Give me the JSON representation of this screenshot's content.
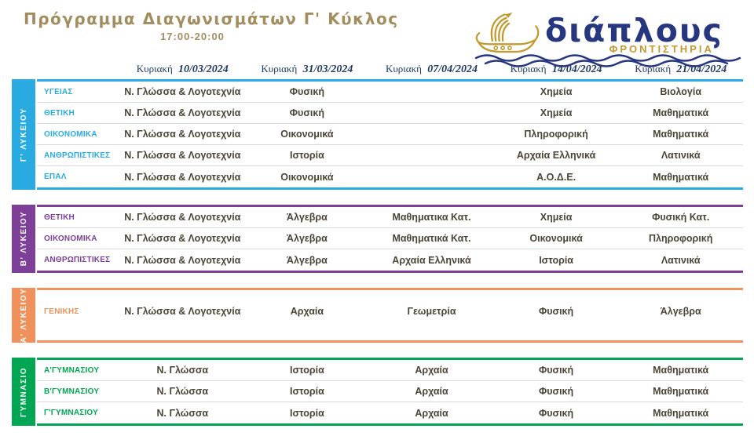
{
  "header": {
    "title": "Πρόγραμμα Διαγωνισμάτων Γ' Κύκλος",
    "time_range": "17:00-20:00"
  },
  "logo": {
    "brand": "διάπλους",
    "brand_sub": "ΦΡΟΝΤΙΣΤΗΡΙΑ",
    "brand_color": "#26367f",
    "gold_color": "#c49a2f"
  },
  "columns": [
    {
      "day": "Κυριακή",
      "date": "10/03/2024"
    },
    {
      "day": "Κυριακή",
      "date": "31/03/2024"
    },
    {
      "day": "Κυριακή",
      "date": "07/04/2024"
    },
    {
      "day": "Κυριακή",
      "date": "14/04/2024"
    },
    {
      "day": "Κυριακή",
      "date": "21/04/2024"
    }
  ],
  "sections": [
    {
      "label": "Γ' ΛΥΚΕΙΟΥ",
      "color": "#29abe2",
      "rows": [
        {
          "label": "ΥΓΕΙΑΣ",
          "cells": [
            "Ν. Γλώσσα & Λογοτεχνία",
            "Φυσική",
            "",
            "Χημεία",
            "Βιολογία"
          ]
        },
        {
          "label": "ΘΕΤΙΚΗ",
          "cells": [
            "Ν. Γλώσσα & Λογοτεχνία",
            "Φυσική",
            "",
            "Χημεία",
            "Μαθηματικά"
          ]
        },
        {
          "label": "ΟΙΚΟΝΟΜΙΚΑ",
          "cells": [
            "Ν. Γλώσσα & Λογοτεχνία",
            "Οικονομικά",
            "",
            "Πληροφορική",
            "Μαθηματικά"
          ]
        },
        {
          "label": "ΑΝΘΡΩΠΙΣΤΙΚΕΣ",
          "cells": [
            "Ν. Γλώσσα & Λογοτεχνία",
            "Ιστορία",
            "",
            "Αρχαία Ελληνικά",
            "Λατινικά"
          ]
        },
        {
          "label": "ΕΠΑΛ",
          "cells": [
            "Ν. Γλώσσα & Λογοτεχνία",
            "Οικονομικά",
            "",
            "Α.Ο.Δ.Ε.",
            "Μαθηματικά"
          ]
        }
      ]
    },
    {
      "label": "Β' ΛΥΚΕΙΟΥ",
      "color": "#7d3f98",
      "rows": [
        {
          "label": "ΘΕΤΙΚΗ",
          "cells": [
            "Ν. Γλώσσα & Λογοτεχνία",
            "Άλγεβρα",
            "Μαθηματικα Κατ.",
            "Χημεία",
            "Φυσική Κατ."
          ]
        },
        {
          "label": "ΟΙΚΟΝΟΜΙΚΑ",
          "cells": [
            "Ν. Γλώσσα & Λογοτεχνία",
            "Άλγεβρα",
            "Μαθηματικά Κατ.",
            "Οικονομικά",
            "Πληροφορική"
          ]
        },
        {
          "label": "ΑΝΘΡΩΠΙΣΤΙΚΕΣ",
          "cells": [
            "Ν. Γλώσσα & Λογοτεχνία",
            "Άλγεβρα",
            "Αρχαία Ελληνικά",
            "Ιστορία",
            "Λατινικά"
          ]
        }
      ]
    },
    {
      "label": "Α' ΛΥΚΕΙΟΥ",
      "color": "#f0915c",
      "rows": [
        {
          "label": "ΓΕΝΙΚΗΣ",
          "cells": [
            "Ν. Γλώσσα & Λογοτεχνία",
            "Αρχαία",
            "Γεωμετρία",
            "Φυσική",
            "Άλγεβρα"
          ]
        }
      ]
    },
    {
      "label": "ΓΥΜΝΑΣΙΟ",
      "color": "#00a651",
      "rows": [
        {
          "label": "Α'ΓΥΜΝΑΣΙΟΥ",
          "cells": [
            "Ν. Γλώσσα",
            "Ιστορία",
            "Αρχαία",
            "Φυσική",
            "Μαθηματικά"
          ]
        },
        {
          "label": "Β'ΓΥΜΝΑΣΙΟΥ",
          "cells": [
            "Ν. Γλώσσα",
            "Ιστορία",
            "Αρχαία",
            "Φυσική",
            "Μαθηματικά"
          ]
        },
        {
          "label": "Γ'ΓΥΜΝΑΣΙΟΥ",
          "cells": [
            "Ν. Γλώσσα",
            "Ιστορία",
            "Αρχαία",
            "Φυσική",
            "Μαθηματικά"
          ]
        }
      ]
    }
  ],
  "colors": {
    "title": "#a28d5f",
    "header_text": "#1f3864",
    "cell_text": "#4b4537",
    "separator": "#d9d9d9"
  }
}
